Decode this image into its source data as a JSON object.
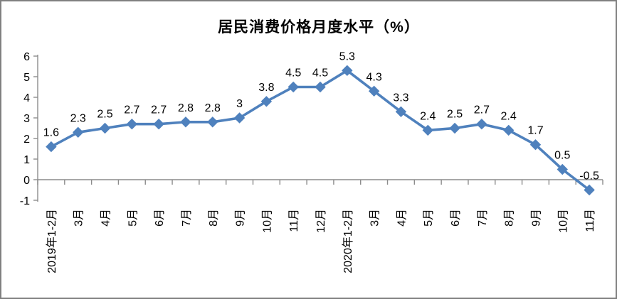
{
  "frame": {
    "border_color": "#808080",
    "background_color": "#FFFFFF"
  },
  "chart_data": {
    "type": "line",
    "title": "居民消费价格月度水平（%）",
    "categories": [
      "2019年1-2月",
      "3月",
      "4月",
      "5月",
      "6月",
      "7月",
      "8月",
      "9月",
      "10月",
      "11月",
      "12月",
      "2020年1-2月",
      "3月",
      "4月",
      "5月",
      "6月",
      "7月",
      "8月",
      "9月",
      "10月",
      "11月"
    ],
    "values": [
      1.6,
      2.3,
      2.5,
      2.7,
      2.7,
      2.8,
      2.8,
      3,
      3.8,
      4.5,
      4.5,
      5.3,
      4.3,
      3.3,
      2.4,
      2.5,
      2.7,
      2.4,
      1.7,
      0.5,
      -0.5
    ],
    "data_labels": [
      "1.6",
      "2.3",
      "2.5",
      "2.7",
      "2.7",
      "2.8",
      "2.8",
      "3",
      "3.8",
      "4.5",
      "4.5",
      "5.3",
      "4.3",
      "3.3",
      "2.4",
      "2.5",
      "2.7",
      "2.4",
      "1.7",
      "0.5",
      "-0.5"
    ],
    "yticks": [
      6,
      5,
      4,
      3,
      2,
      1,
      0,
      -1
    ],
    "ylim": [
      -1,
      6
    ],
    "xlabel": "",
    "ylabel": "",
    "grid": false,
    "legend_position": "none",
    "marker": "diamond",
    "series_color": "#4F81BD",
    "axis_color": "#8C8C8C",
    "text_color": "#000000"
  }
}
